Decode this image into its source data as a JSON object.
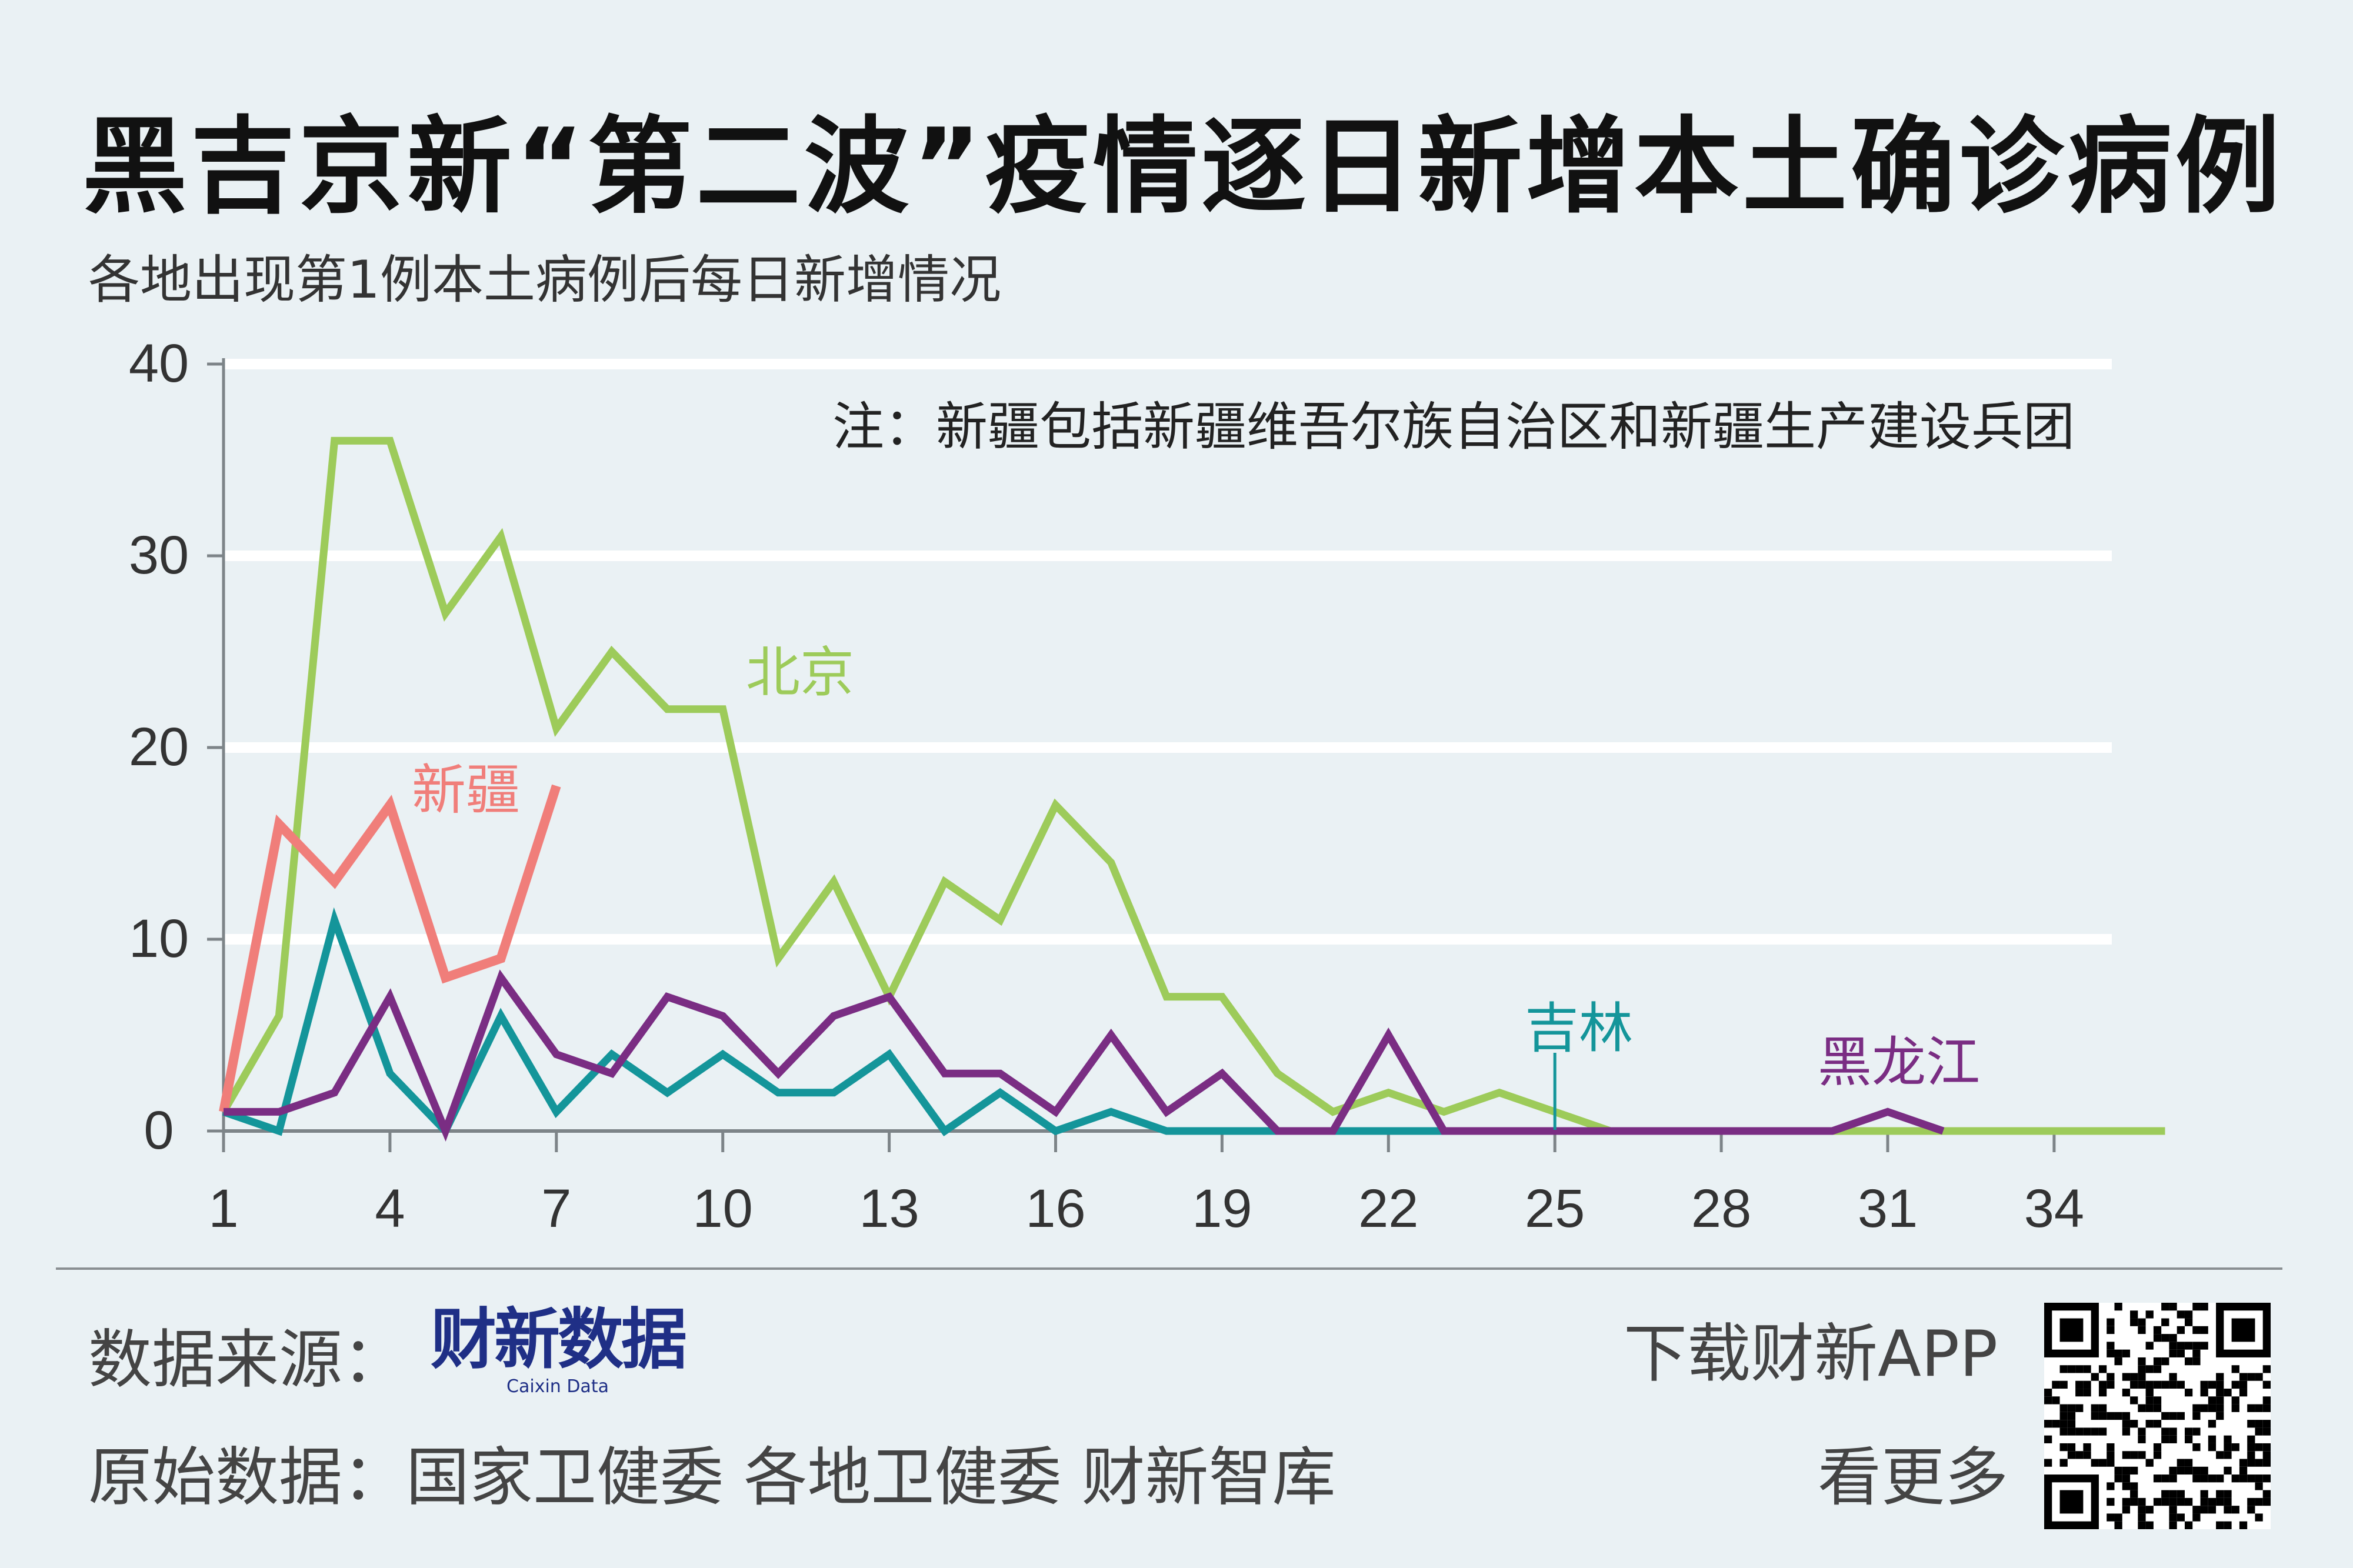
{
  "title": "黑吉京新“第二波”疫情逐日新增本土确诊病例",
  "subtitle": "各地出现第1例本土病例后每日新增情况",
  "note": "注：新疆包括新疆维吾尔族自治区和新疆生产建设兵团",
  "footer": {
    "source_label": "数据来源：",
    "logo_cn": "财新数据",
    "logo_en": "Caixin Data",
    "original_data": "原始数据：国家卫健委 各地卫健委 财新智库",
    "app_line1": "下载财新APP",
    "app_line2": "看更多"
  },
  "chart_data": {
    "type": "line",
    "title": "黑吉京新“第二波”疫情逐日新增本土确诊病例",
    "subtitle": "各地出现第1例本土病例后每日新增情况",
    "xlabel": "",
    "ylabel": "",
    "xlim": [
      1,
      36
    ],
    "ylim": [
      0,
      40
    ],
    "x_ticks": [
      1,
      4,
      7,
      10,
      13,
      16,
      19,
      22,
      25,
      28,
      31,
      34
    ],
    "y_ticks": [
      0,
      10,
      20,
      30,
      40
    ],
    "grid": "horizontal",
    "legend": "inline labels",
    "series": [
      {
        "name": "北京",
        "color": "#9dcb5a",
        "x": [
          1,
          2,
          3,
          4,
          5,
          6,
          7,
          8,
          9,
          10,
          11,
          12,
          13,
          14,
          15,
          16,
          17,
          18,
          19,
          20,
          21,
          22,
          23,
          24,
          25,
          26,
          27,
          28,
          29,
          30,
          31,
          32,
          33,
          34,
          35,
          36
        ],
        "values": [
          1,
          6,
          36,
          36,
          27,
          31,
          21,
          25,
          22,
          22,
          9,
          13,
          7,
          13,
          11,
          17,
          14,
          7,
          7,
          3,
          1,
          2,
          1,
          2,
          1,
          0,
          0,
          0,
          0,
          0,
          0,
          0,
          0,
          0,
          0,
          0
        ]
      },
      {
        "name": "新疆",
        "color": "#f07e7a",
        "x": [
          1,
          2,
          3,
          4,
          5,
          6,
          7
        ],
        "values": [
          1,
          16,
          13,
          17,
          8,
          9,
          18
        ]
      },
      {
        "name": "吉林",
        "color": "#14959a",
        "x": [
          1,
          2,
          3,
          4,
          5,
          6,
          7,
          8,
          9,
          10,
          11,
          12,
          13,
          14,
          15,
          16,
          17,
          18,
          19,
          20,
          21,
          22,
          23,
          24,
          25
        ],
        "values": [
          1,
          0,
          11,
          3,
          0,
          6,
          1,
          4,
          2,
          4,
          2,
          2,
          4,
          0,
          2,
          0,
          1,
          0,
          0,
          0,
          0,
          0,
          0,
          0,
          0
        ]
      },
      {
        "name": "黑龙江",
        "color": "#7a2d83",
        "x": [
          1,
          2,
          3,
          4,
          5,
          6,
          7,
          8,
          9,
          10,
          11,
          12,
          13,
          14,
          15,
          16,
          17,
          18,
          19,
          20,
          21,
          22,
          23,
          24,
          25,
          26,
          27,
          28,
          29,
          30,
          31,
          32
        ],
        "values": [
          1,
          1,
          2,
          7,
          0,
          8,
          4,
          3,
          7,
          6,
          3,
          6,
          7,
          3,
          3,
          1,
          5,
          1,
          3,
          0,
          0,
          5,
          0,
          0,
          0,
          0,
          0,
          0,
          0,
          0,
          1,
          0
        ]
      }
    ]
  }
}
